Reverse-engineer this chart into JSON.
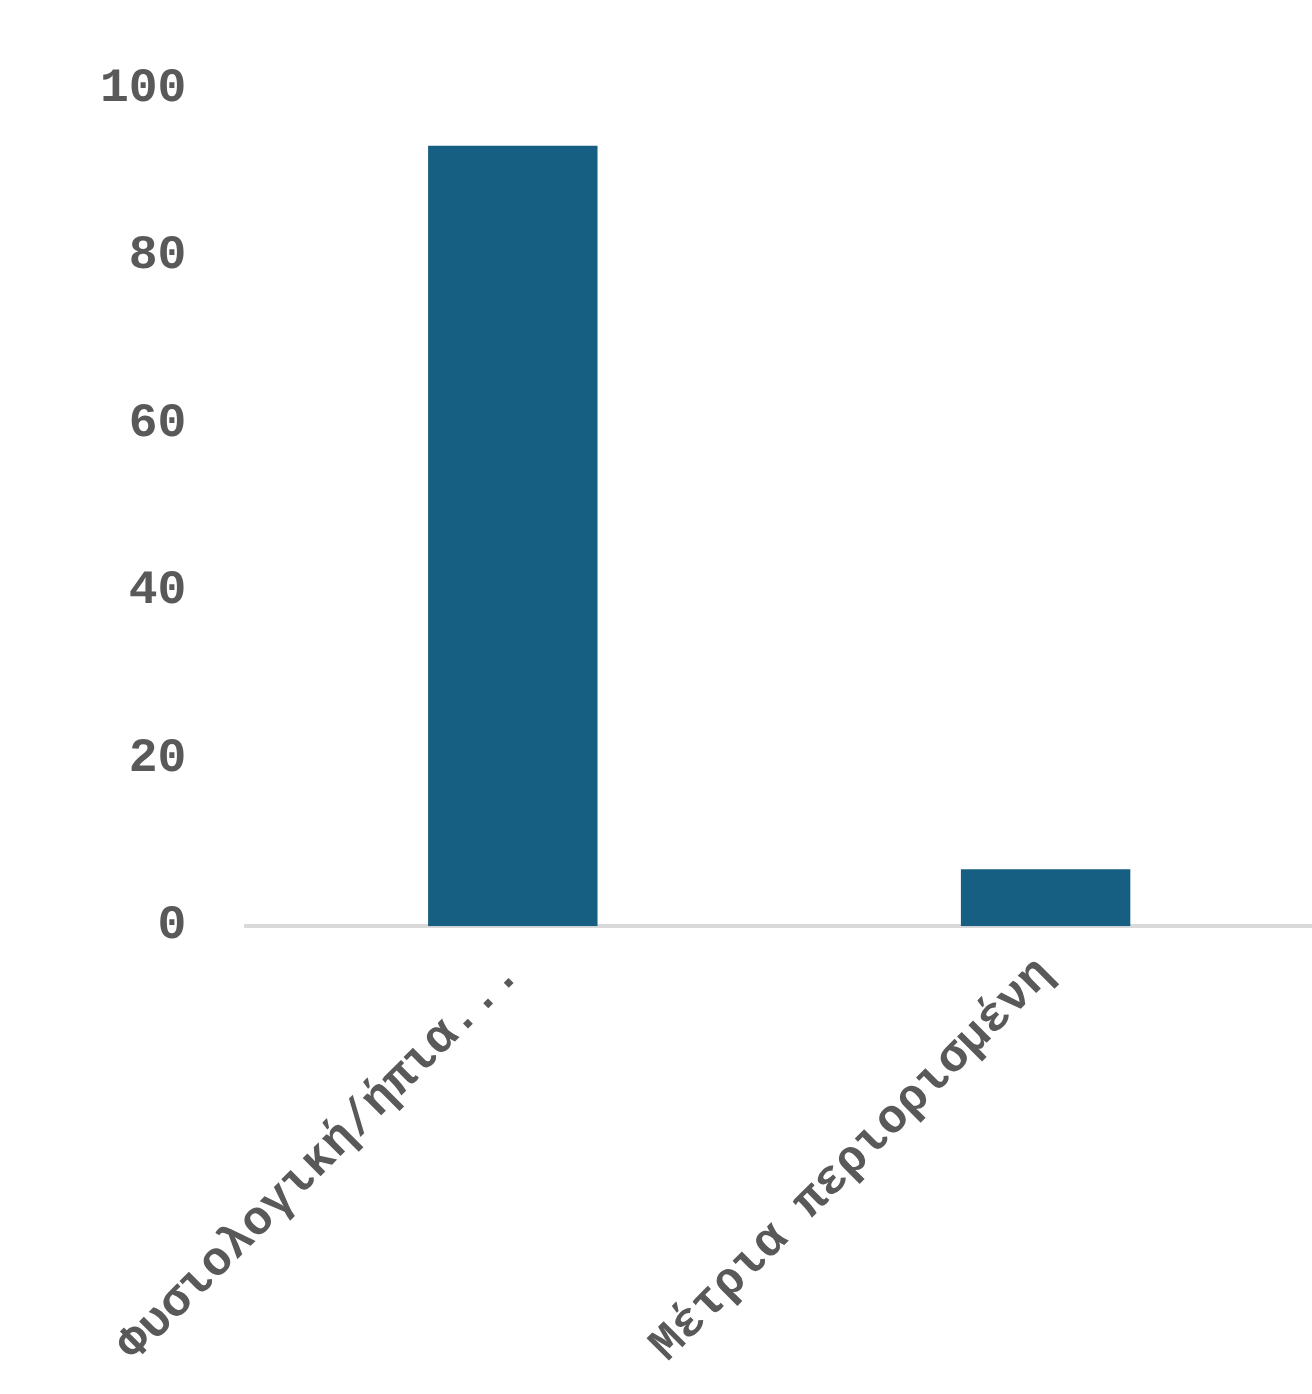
{
  "chart_data": {
    "type": "bar",
    "categories": [
      "Φυσιολογική/ήπια...",
      "Μέτρια περιορισμένη"
    ],
    "values": [
      93.2,
      6.8
    ],
    "color": "#175e83",
    "ylim": [
      0,
      100
    ],
    "yticks": [
      0,
      20,
      40,
      60,
      80,
      100
    ],
    "grid": false,
    "legend": false
  }
}
